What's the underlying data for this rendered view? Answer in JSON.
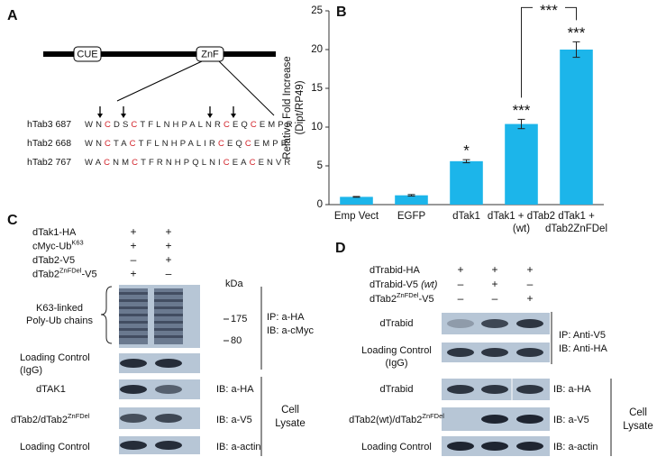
{
  "panel_labels": [
    "A",
    "B",
    "C",
    "D"
  ],
  "panel_a": {
    "domains": [
      "CUE",
      "ZnF"
    ],
    "sequences": [
      {
        "name": "hTab3 687",
        "segments": [
          {
            "text": "WN",
            "color": "#222"
          },
          {
            "text": "C",
            "color": "#d2232a"
          },
          {
            "text": "DS",
            "color": "#222"
          },
          {
            "text": "C",
            "color": "#d2232a"
          },
          {
            "text": "TFLNHPALNR",
            "color": "#222"
          },
          {
            "text": "C",
            "color": "#d2232a"
          },
          {
            "text": "EQ",
            "color": "#222"
          },
          {
            "text": "C",
            "color": "#d2232a"
          },
          {
            "text": "EMPR",
            "color": "#222"
          }
        ]
      },
      {
        "name": "hTab2 668",
        "segments": [
          {
            "text": "WN",
            "color": "#222"
          },
          {
            "text": "C",
            "color": "#d2232a"
          },
          {
            "text": "TA",
            "color": "#222"
          },
          {
            "text": "C",
            "color": "#d2232a"
          },
          {
            "text": "TFLNHPALIR",
            "color": "#222"
          },
          {
            "text": "C",
            "color": "#d2232a"
          },
          {
            "text": "EQ",
            "color": "#222"
          },
          {
            "text": "C",
            "color": "#d2232a"
          },
          {
            "text": "EMPR",
            "color": "#222"
          }
        ]
      },
      {
        "name": "hTab2 767",
        "segments": [
          {
            "text": "WA",
            "color": "#222"
          },
          {
            "text": "C",
            "color": "#d2232a"
          },
          {
            "text": "NM",
            "color": "#222"
          },
          {
            "text": "C",
            "color": "#d2232a"
          },
          {
            "text": "TFRNHPQLNI",
            "color": "#222"
          },
          {
            "text": "C",
            "color": "#d2232a"
          },
          {
            "text": "EA",
            "color": "#222"
          },
          {
            "text": "C",
            "color": "#d2232a"
          },
          {
            "text": "ENVR",
            "color": "#222"
          }
        ]
      }
    ]
  },
  "chart_data": {
    "type": "bar",
    "ylabel": [
      "Relative Fold Increase",
      "(Dipt/RP49)"
    ],
    "categories": [
      "Emp Vect",
      "EGFP",
      "dTak1",
      "dTak1 + dTab2 (wt)",
      "dTak1 + dTab2ZnFDel"
    ],
    "values": [
      1.0,
      1.2,
      5.6,
      10.4,
      20.0
    ],
    "errors": [
      0.05,
      0.1,
      0.2,
      0.6,
      1.0
    ],
    "color": "#1cb5ea",
    "ylim": [
      0,
      25
    ],
    "yticks": [
      0,
      5,
      10,
      15,
      20,
      25
    ],
    "annotations": [
      {
        "text": "*",
        "category": "dTak1"
      },
      {
        "text": "***",
        "category": "dTak1 + dTab2 (wt)"
      },
      {
        "text": "***",
        "category": "dTak1 + dTab2ZnFDel"
      }
    ],
    "bracket": {
      "text": "***",
      "from": "dTak1 + dTab2 (wt)",
      "to": "dTak1 + dTab2ZnFDel"
    }
  },
  "panel_c": {
    "conditions": [
      {
        "label": [
          {
            "text": "dTak1-HA"
          }
        ],
        "lanes": [
          "+",
          "+"
        ]
      },
      {
        "label": [
          {
            "text": "cMyc-Ub"
          },
          {
            "sup": "K63"
          }
        ],
        "lanes": [
          "+",
          "+"
        ]
      },
      {
        "label": [
          {
            "text": "dTab2-V5"
          }
        ],
        "lanes": [
          "–",
          "+"
        ]
      },
      {
        "label": [
          {
            "text": "dTab2"
          },
          {
            "sup": "ZnFDel"
          },
          {
            "text": "-V5"
          }
        ],
        "lanes": [
          "+",
          "–"
        ]
      }
    ],
    "blots": [
      {
        "label": [
          [
            {
              "text": "K63-linked"
            }
          ],
          [
            {
              "text": "Poly-Ub chains"
            }
          ]
        ]
      },
      {
        "label": [
          [
            {
              "text": "Loading Control"
            }
          ],
          [
            {
              "text": "(IgG)"
            }
          ]
        ]
      },
      {
        "label": [
          [
            {
              "text": "dTAK1"
            }
          ]
        ]
      },
      {
        "label": [
          [
            {
              "text": "dTab2/dTab2"
            },
            {
              "sup": "ZnFDel"
            }
          ]
        ]
      },
      {
        "label": [
          [
            {
              "text": "Loading Control"
            }
          ]
        ]
      }
    ],
    "kda": {
      "unit": "kDa",
      "markers": [
        175,
        80
      ]
    },
    "antibodies": [
      [
        "IP: a-HA",
        "IB: a-cMyc"
      ],
      [
        "IB: a-HA"
      ],
      [
        "IB: a-V5"
      ],
      [
        "IB: a-actin"
      ]
    ],
    "group": [
      "Cell",
      "Lysate"
    ]
  },
  "panel_d": {
    "conditions": [
      {
        "label": [
          {
            "text": "dTrabid-HA"
          }
        ],
        "lanes": [
          "+",
          "+",
          "+"
        ]
      },
      {
        "label": [
          {
            "text": "dTrabid-V5 "
          },
          {
            "em": "(wt)"
          }
        ],
        "lanes": [
          "–",
          "+",
          "–"
        ]
      },
      {
        "label": [
          {
            "text": "dTab2"
          },
          {
            "sup": "ZnFDel"
          },
          {
            "text": "-V5"
          }
        ],
        "lanes": [
          "–",
          "–",
          "+"
        ]
      }
    ],
    "blots": [
      {
        "label": [
          [
            {
              "text": "dTrabid"
            }
          ]
        ]
      },
      {
        "label": [
          [
            {
              "text": "Loading Control"
            }
          ],
          [
            {
              "text": "(IgG)"
            }
          ]
        ]
      },
      {
        "label": [
          [
            {
              "text": "dTrabid"
            }
          ]
        ]
      },
      {
        "label": [
          [
            {
              "text": "dTab2(wt)/dTab2"
            },
            {
              "sup": "ZnFDel"
            }
          ]
        ]
      },
      {
        "label": [
          [
            {
              "text": "Loading Control"
            }
          ]
        ]
      }
    ],
    "antibodies": [
      [
        "IP: Anti-V5",
        "IB: Anti-HA"
      ],
      [
        "IB: a-HA"
      ],
      [
        "IB: a-V5"
      ],
      [
        "IB: a-actin"
      ]
    ],
    "group": [
      "Cell",
      "Lysate"
    ]
  }
}
